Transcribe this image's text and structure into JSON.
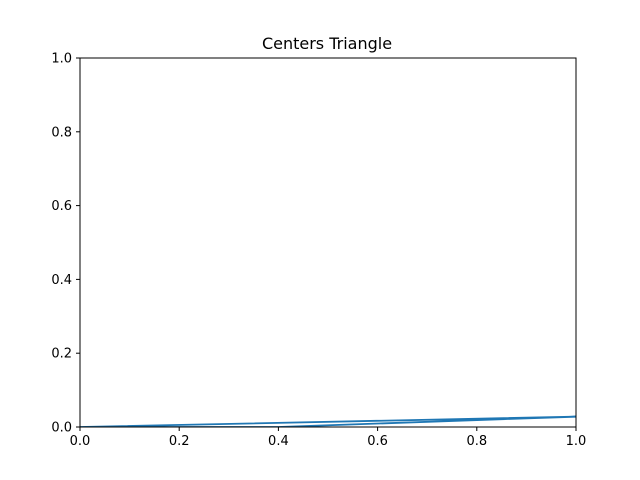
{
  "chart_data": {
    "type": "line",
    "title": "Centers Triangle",
    "xlabel": "",
    "ylabel": "",
    "xlim": [
      0.0,
      1.0
    ],
    "ylim": [
      0.0,
      1.0
    ],
    "xticks": [
      "0.0",
      "0.2",
      "0.4",
      "0.6",
      "0.8",
      "1.0"
    ],
    "yticks": [
      "0.0",
      "0.2",
      "0.4",
      "0.6",
      "0.8",
      "1.0"
    ],
    "grid": false,
    "legend": "none",
    "series": [
      {
        "color": "#1f77b4",
        "x": [
          0.0,
          1.0,
          0.4,
          0.0
        ],
        "y": [
          0.0,
          0.028,
          0.0,
          0.0
        ]
      }
    ]
  }
}
